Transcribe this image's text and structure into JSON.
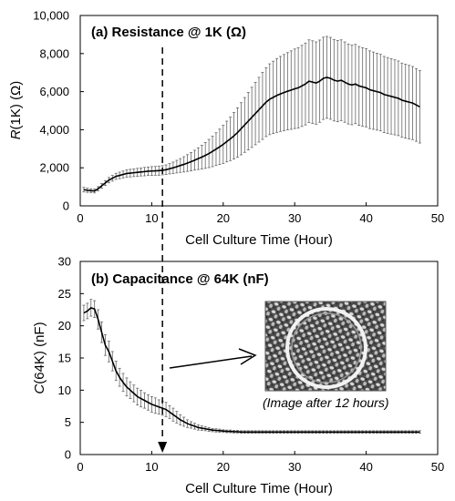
{
  "chart_data": [
    {
      "id": "resistance",
      "type": "line",
      "title": "(a) Resistance @ 1K (Ω)",
      "xlabel": "Cell Culture Time (Hour)",
      "ylabel_main": "R",
      "ylabel_rest": "(1K) (Ω)",
      "xlim": [
        0,
        50
      ],
      "ylim": [
        0,
        10000
      ],
      "xticks": [
        0,
        10,
        20,
        30,
        40,
        50
      ],
      "yticks": [
        0,
        2000,
        4000,
        6000,
        8000,
        10000
      ],
      "xtick_labels": [
        "0",
        "10",
        "20",
        "30",
        "40",
        "50"
      ],
      "ytick_labels": [
        "0",
        "2,000",
        "4,000",
        "6,000",
        "8,000",
        "10,000"
      ],
      "grid": false,
      "series": [
        {
          "x": [
            0.5,
            1,
            1.5,
            2,
            2.5,
            3,
            3.5,
            4,
            4.5,
            5,
            5.5,
            6,
            6.5,
            7,
            7.5,
            8,
            8.5,
            9,
            9.5,
            10,
            10.5,
            11,
            11.5,
            12,
            12.5,
            13,
            13.5,
            14,
            14.5,
            15,
            15.5,
            16,
            16.5,
            17,
            17.5,
            18,
            18.5,
            19,
            19.5,
            20,
            20.5,
            21,
            21.5,
            22,
            22.5,
            23,
            23.5,
            24,
            24.5,
            25,
            25.5,
            26,
            26.5,
            27,
            27.5,
            28,
            28.5,
            29,
            29.5,
            30,
            30.5,
            31,
            31.5,
            32,
            32.5,
            33,
            33.5,
            34,
            34.5,
            35,
            35.5,
            36,
            36.5,
            37,
            37.5,
            38,
            38.5,
            39,
            39.5,
            40,
            40.5,
            41,
            41.5,
            42,
            42.5,
            43,
            43.5,
            44,
            44.5,
            45,
            45.5,
            46,
            46.5,
            47,
            47.5
          ],
          "y": [
            850,
            820,
            800,
            780,
            900,
            1050,
            1200,
            1350,
            1450,
            1550,
            1600,
            1650,
            1700,
            1720,
            1740,
            1760,
            1780,
            1800,
            1820,
            1830,
            1840,
            1850,
            1870,
            1900,
            1950,
            2000,
            2060,
            2120,
            2180,
            2250,
            2320,
            2400,
            2480,
            2560,
            2650,
            2750,
            2860,
            2980,
            3100,
            3230,
            3380,
            3520,
            3680,
            3850,
            4050,
            4250,
            4450,
            4650,
            4850,
            5050,
            5250,
            5450,
            5600,
            5700,
            5800,
            5880,
            5950,
            6020,
            6080,
            6150,
            6200,
            6300,
            6400,
            6550,
            6500,
            6450,
            6550,
            6700,
            6750,
            6700,
            6600,
            6550,
            6600,
            6500,
            6400,
            6350,
            6400,
            6300,
            6250,
            6200,
            6100,
            6050,
            6000,
            5950,
            5850,
            5800,
            5750,
            5700,
            5650,
            5550,
            5500,
            5450,
            5400,
            5300,
            5200
          ],
          "err": [
            120,
            110,
            100,
            100,
            110,
            120,
            130,
            140,
            150,
            160,
            170,
            180,
            190,
            200,
            200,
            210,
            210,
            220,
            220,
            230,
            230,
            240,
            240,
            250,
            270,
            300,
            330,
            360,
            400,
            440,
            480,
            520,
            570,
            620,
            680,
            740,
            800,
            860,
            930,
            1000,
            1070,
            1140,
            1220,
            1300,
            1370,
            1440,
            1510,
            1580,
            1640,
            1700,
            1760,
            1810,
            1860,
            1900,
            1940,
            1970,
            2000,
            2030,
            2060,
            2090,
            2110,
            2130,
            2150,
            2170,
            2170,
            2160,
            2160,
            2160,
            2150,
            2150,
            2140,
            2130,
            2120,
            2110,
            2100,
            2090,
            2080,
            2070,
            2060,
            2050,
            2040,
            2030,
            2020,
            2010,
            2000,
            1990,
            1980,
            1970,
            1960,
            1950,
            1940,
            1930,
            1920,
            1910,
            1900
          ]
        }
      ]
    },
    {
      "id": "capacitance",
      "type": "line",
      "title": "(b) Capacitance @ 64K (nF)",
      "xlabel": "Cell Culture Time (Hour)",
      "ylabel_main": "C",
      "ylabel_rest": "(64K) (nF)",
      "xlim": [
        0,
        50
      ],
      "ylim": [
        0,
        30
      ],
      "xticks": [
        0,
        10,
        20,
        30,
        40,
        50
      ],
      "yticks": [
        0,
        5,
        10,
        15,
        20,
        25,
        30
      ],
      "xtick_labels": [
        "0",
        "10",
        "20",
        "30",
        "40",
        "50"
      ],
      "ytick_labels": [
        "0",
        "5",
        "10",
        "15",
        "20",
        "25",
        "30"
      ],
      "grid": false,
      "annotation": "(Image after 12 hours)",
      "series": [
        {
          "x": [
            0.5,
            1,
            1.5,
            2,
            2.5,
            3,
            3.5,
            4,
            4.5,
            5,
            5.5,
            6,
            6.5,
            7,
            7.5,
            8,
            8.5,
            9,
            9.5,
            10,
            10.5,
            11,
            11.5,
            12,
            12.5,
            13,
            13.5,
            14,
            14.5,
            15,
            15.5,
            16,
            16.5,
            17,
            17.5,
            18,
            18.5,
            19,
            19.5,
            20,
            20.5,
            21,
            21.5,
            22,
            22.5,
            23,
            23.5,
            24,
            24.5,
            25,
            25.5,
            26,
            26.5,
            27,
            27.5,
            28,
            28.5,
            29,
            29.5,
            30,
            30.5,
            31,
            31.5,
            32,
            32.5,
            33,
            33.5,
            34,
            34.5,
            35,
            35.5,
            36,
            36.5,
            37,
            37.5,
            38,
            38.5,
            39,
            39.5,
            40,
            40.5,
            41,
            41.5,
            42,
            42.5,
            43,
            43.5,
            44,
            44.5,
            45,
            45.5,
            46,
            46.5,
            47,
            47.5
          ],
          "y": [
            22,
            22.3,
            22.8,
            22.6,
            21,
            19,
            17,
            16,
            14.5,
            13,
            12,
            11.2,
            10.5,
            10,
            9.5,
            9,
            8.7,
            8.4,
            8.1,
            7.8,
            7.6,
            7.4,
            7.2,
            7,
            6.6,
            6.2,
            5.8,
            5.4,
            5.1,
            4.8,
            4.6,
            4.4,
            4.2,
            4.1,
            4,
            3.9,
            3.8,
            3.75,
            3.7,
            3.65,
            3.6,
            3.6,
            3.55,
            3.55,
            3.5,
            3.5,
            3.5,
            3.5,
            3.5,
            3.5,
            3.5,
            3.5,
            3.5,
            3.5,
            3.5,
            3.5,
            3.5,
            3.5,
            3.5,
            3.5,
            3.5,
            3.5,
            3.5,
            3.5,
            3.5,
            3.5,
            3.5,
            3.5,
            3.5,
            3.5,
            3.5,
            3.5,
            3.5,
            3.5,
            3.5,
            3.5,
            3.5,
            3.5,
            3.5,
            3.5,
            3.5,
            3.5,
            3.5,
            3.5,
            3.5,
            3.5,
            3.5,
            3.5,
            3.5,
            3.5,
            3.5,
            3.5,
            3.5,
            3.5,
            3.5
          ],
          "err": [
            1.2,
            1.2,
            1.3,
            1.3,
            1.5,
            1.6,
            1.6,
            1.6,
            1.5,
            1.5,
            1.4,
            1.4,
            1.4,
            1.3,
            1.3,
            1.3,
            1.3,
            1.2,
            1.2,
            1.2,
            1.2,
            1.1,
            1.1,
            1.1,
            1,
            1,
            0.9,
            0.8,
            0.7,
            0.6,
            0.5,
            0.45,
            0.4,
            0.35,
            0.3,
            0.3,
            0.25,
            0.25,
            0.25,
            0.2,
            0.2,
            0.2,
            0.2,
            0.2,
            0.2,
            0.2,
            0.2,
            0.2,
            0.2,
            0.2,
            0.2,
            0.2,
            0.2,
            0.2,
            0.2,
            0.2,
            0.2,
            0.2,
            0.2,
            0.2,
            0.2,
            0.2,
            0.2,
            0.2,
            0.2,
            0.2,
            0.2,
            0.2,
            0.2,
            0.2,
            0.2,
            0.2,
            0.2,
            0.2,
            0.2,
            0.2,
            0.2,
            0.2,
            0.2,
            0.2,
            0.2,
            0.2,
            0.2,
            0.2,
            0.2,
            0.2,
            0.2,
            0.2,
            0.2,
            0.2,
            0.2,
            0.2,
            0.2,
            0.2,
            0.2
          ]
        }
      ]
    }
  ],
  "marker": {
    "hour": 11.5
  }
}
